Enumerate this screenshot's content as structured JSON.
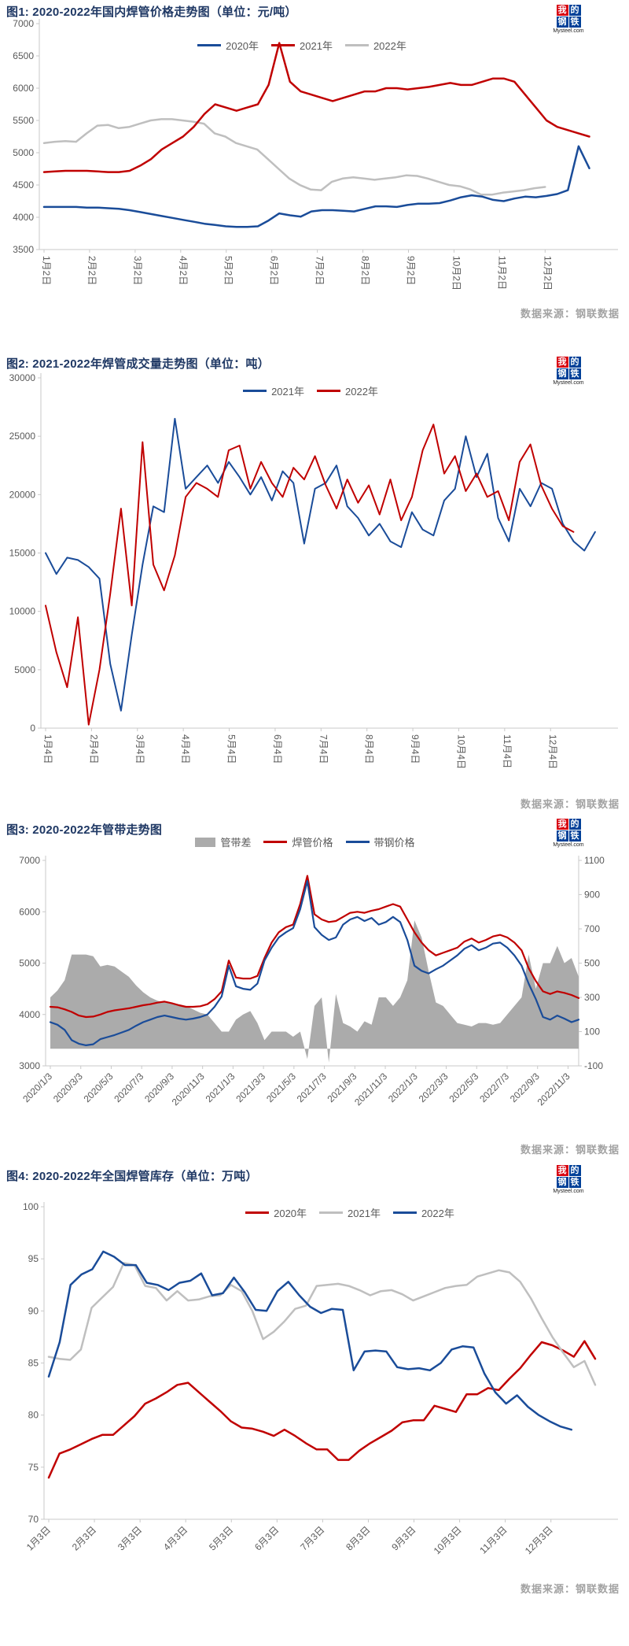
{
  "logo": {
    "chars": [
      "我",
      "的",
      "钢",
      "铁"
    ],
    "domain": "Mysteel.com",
    "red": "#D7000F",
    "blue": "#004098"
  },
  "chart_data": [
    {
      "type": "line",
      "title": "图1: 2020-2022年国内焊管价格走势图（单位：元/吨）",
      "source": "数据来源：钢联数据",
      "y_axis": {
        "min": 3500,
        "max": 7000,
        "step": 500
      },
      "x_tick_labels": [
        "1月2日",
        "2月2日",
        "3月2日",
        "4月2日",
        "5月2日",
        "6月2日",
        "7月2日",
        "8月2日",
        "9月2日",
        "10月2日",
        "11月2日",
        "12月2日"
      ],
      "x_tick_rotation": "vertical",
      "months_total": 11.97,
      "x_span_frac": 0.95,
      "line_width": 2.5,
      "legend_position": "top-center",
      "draw_order": [
        2,
        0,
        1
      ],
      "series": [
        {
          "name": "2020年",
          "kind": "line",
          "axis": "left",
          "color": "#1A4C99",
          "months": 11.97,
          "values": [
            4160,
            4160,
            4160,
            4160,
            4150,
            4150,
            4140,
            4130,
            4110,
            4080,
            4050,
            4020,
            3990,
            3960,
            3930,
            3900,
            3880,
            3860,
            3850,
            3850,
            3860,
            3950,
            4060,
            4030,
            4010,
            4090,
            4110,
            4110,
            4100,
            4090,
            4130,
            4170,
            4170,
            4160,
            4190,
            4210,
            4210,
            4220,
            4260,
            4310,
            4340,
            4320,
            4270,
            4250,
            4290,
            4320,
            4310,
            4330,
            4360,
            4420,
            5100,
            4760
          ]
        },
        {
          "name": "2021年",
          "kind": "line",
          "axis": "left",
          "color": "#C00000",
          "months": 11.97,
          "values": [
            4700,
            4710,
            4720,
            4720,
            4720,
            4710,
            4700,
            4700,
            4720,
            4800,
            4900,
            5050,
            5150,
            5250,
            5400,
            5600,
            5750,
            5700,
            5650,
            5700,
            5750,
            6050,
            6700,
            6100,
            5950,
            5900,
            5850,
            5800,
            5850,
            5900,
            5950,
            5950,
            6000,
            6000,
            5980,
            6000,
            6020,
            6050,
            6080,
            6050,
            6050,
            6100,
            6150,
            6150,
            6100,
            5900,
            5700,
            5500,
            5400,
            5350,
            5300,
            5250
          ]
        },
        {
          "name": "2022年",
          "kind": "line",
          "axis": "left",
          "color": "#BFBFBF",
          "months": 11.0,
          "values": [
            5150,
            5170,
            5180,
            5170,
            5300,
            5420,
            5430,
            5380,
            5400,
            5450,
            5500,
            5520,
            5520,
            5500,
            5480,
            5450,
            5300,
            5250,
            5150,
            5100,
            5050,
            4900,
            4750,
            4600,
            4500,
            4430,
            4420,
            4550,
            4600,
            4620,
            4600,
            4580,
            4600,
            4620,
            4650,
            4640,
            4600,
            4550,
            4500,
            4480,
            4430,
            4350,
            4350,
            4380,
            4400,
            4420,
            4450,
            4470
          ]
        }
      ]
    },
    {
      "type": "line",
      "title": "图2: 2021-2022年焊管成交量走势图（单位：吨）",
      "source": "数据来源：钢联数据",
      "y_axis": {
        "min": 0,
        "max": 30000,
        "step": 5000
      },
      "x_tick_labels": [
        "1月4日",
        "2月4日",
        "3月4日",
        "4月4日",
        "5月4日",
        "6月4日",
        "7月4日",
        "8月4日",
        "9月4日",
        "10月4日",
        "11月4日",
        "12月4日"
      ],
      "x_tick_rotation": "vertical",
      "months_total": 11.97,
      "x_span_frac": 0.96,
      "line_width": 2,
      "legend_position": "top-center",
      "draw_order": [
        0,
        1
      ],
      "series": [
        {
          "name": "2021年",
          "kind": "line",
          "axis": "left",
          "color": "#1A4C99",
          "months": 11.97,
          "values": [
            15000,
            13200,
            14600,
            14400,
            13800,
            12800,
            5500,
            1500,
            8000,
            14000,
            19000,
            18500,
            26500,
            20500,
            21500,
            22500,
            21000,
            22800,
            21500,
            20000,
            21500,
            19500,
            22000,
            21000,
            15800,
            20500,
            21000,
            22500,
            19000,
            18000,
            16500,
            17500,
            16000,
            15500,
            18500,
            17000,
            16500,
            19500,
            20500,
            25000,
            21500,
            23500,
            18000,
            16000,
            20500,
            19000,
            21000,
            20500,
            17500,
            16000,
            15200,
            16800
          ]
        },
        {
          "name": "2022年",
          "kind": "line",
          "axis": "left",
          "color": "#C00000",
          "months": 11.5,
          "values": [
            10500,
            6500,
            3500,
            9500,
            300,
            5000,
            11500,
            18800,
            10500,
            24500,
            14000,
            11800,
            14800,
            19800,
            21000,
            20500,
            19800,
            23800,
            24200,
            20500,
            22800,
            21000,
            19800,
            22300,
            21300,
            23300,
            20800,
            18800,
            21300,
            19300,
            20800,
            18300,
            21300,
            17800,
            19800,
            23800,
            26000,
            21800,
            23300,
            20300,
            21800,
            19800,
            20300,
            17800,
            22800,
            24300,
            20800,
            18800,
            17300,
            16800
          ]
        }
      ]
    },
    {
      "type": "area+line",
      "title": "图3: 2020-2022年管带走势图",
      "source": "数据来源：钢联数据",
      "y_axis": {
        "min": 3000,
        "max": 7000,
        "step": 1000
      },
      "y_axis_right": {
        "min": -100,
        "max": 1100,
        "step": 200
      },
      "x_tick_labels": [
        "2020/1/3",
        "2020/3/3",
        "2020/5/3",
        "2020/7/3",
        "2020/9/3",
        "2020/11/3",
        "2021/1/3",
        "2021/3/3",
        "2021/5/3",
        "2021/7/3",
        "2021/9/3",
        "2021/11/3",
        "2022/1/3",
        "2022/3/3",
        "2022/5/3",
        "2022/7/3",
        "2022/9/3",
        "2022/11/3"
      ],
      "x_tick_rotation": "diagonal",
      "x_tick_month_step": 2,
      "months_total": 34.7,
      "x_span_frac": 1.0,
      "line_width": 2.2,
      "legend_position": "top-center",
      "draw_order": [
        0,
        1,
        2
      ],
      "series": [
        {
          "name": "管带差",
          "kind": "area",
          "axis": "right",
          "color": "#ABABAB",
          "months": 34.7,
          "values": [
            300,
            340,
            400,
            550,
            550,
            550,
            540,
            480,
            490,
            480,
            450,
            420,
            370,
            330,
            300,
            280,
            270,
            270,
            260,
            250,
            230,
            210,
            200,
            150,
            100,
            100,
            170,
            200,
            220,
            150,
            50,
            100,
            100,
            100,
            70,
            100,
            -60,
            250,
            300,
            -80,
            320,
            150,
            130,
            100,
            160,
            140,
            300,
            300,
            250,
            300,
            400,
            750,
            650,
            450,
            270,
            250,
            200,
            150,
            140,
            130,
            150,
            150,
            140,
            150,
            200,
            250,
            300,
            550,
            350,
            500,
            500,
            600,
            500,
            530,
            420
          ]
        },
        {
          "name": "焊管价格",
          "kind": "line",
          "axis": "left",
          "color": "#C00000",
          "months": 34.7,
          "values": [
            4150,
            4140,
            4100,
            4050,
            3980,
            3950,
            3960,
            4000,
            4050,
            4080,
            4100,
            4120,
            4150,
            4180,
            4200,
            4230,
            4250,
            4220,
            4180,
            4150,
            4150,
            4160,
            4200,
            4300,
            4450,
            5050,
            4720,
            4700,
            4700,
            4750,
            5100,
            5400,
            5600,
            5700,
            5750,
            6150,
            6700,
            5950,
            5850,
            5800,
            5820,
            5900,
            5980,
            6000,
            5980,
            6020,
            6050,
            6100,
            6150,
            6100,
            5850,
            5600,
            5400,
            5250,
            5150,
            5200,
            5250,
            5300,
            5420,
            5480,
            5400,
            5450,
            5520,
            5550,
            5500,
            5400,
            5250,
            4900,
            4650,
            4450,
            4400,
            4450,
            4420,
            4380,
            4320
          ]
        },
        {
          "name": "带钢价格",
          "kind": "line",
          "axis": "left",
          "color": "#1A4C99",
          "months": 34.7,
          "values": [
            3850,
            3800,
            3700,
            3500,
            3430,
            3400,
            3420,
            3520,
            3560,
            3600,
            3650,
            3700,
            3780,
            3850,
            3900,
            3950,
            3980,
            3950,
            3920,
            3900,
            3920,
            3950,
            4000,
            4150,
            4350,
            4950,
            4550,
            4500,
            4480,
            4600,
            5050,
            5300,
            5500,
            5600,
            5680,
            6050,
            6600,
            5700,
            5550,
            5450,
            5500,
            5750,
            5850,
            5900,
            5820,
            5880,
            5750,
            5800,
            5900,
            5800,
            5450,
            4950,
            4850,
            4800,
            4880,
            4950,
            5050,
            5150,
            5280,
            5350,
            5250,
            5300,
            5380,
            5400,
            5300,
            5150,
            4950,
            4600,
            4300,
            3950,
            3900,
            3980,
            3920,
            3850,
            3900
          ]
        }
      ]
    },
    {
      "type": "line",
      "title": "图4: 2020-2022年全国焊管库存（单位：万吨）",
      "source": "数据来源：钢联数据",
      "y_axis": {
        "min": 70,
        "max": 100,
        "step": 5
      },
      "x_tick_labels": [
        "1月3日",
        "2月3日",
        "3月3日",
        "4月3日",
        "5月3日",
        "6月3日",
        "7月3日",
        "8月3日",
        "9月3日",
        "10月3日",
        "11月3日",
        "12月3日"
      ],
      "x_tick_rotation": "diagonal",
      "months_total": 11.97,
      "x_span_frac": 0.96,
      "line_width": 2.5,
      "legend_position": "top-center",
      "draw_order": [
        0,
        1,
        2
      ],
      "series": [
        {
          "name": "2020年",
          "kind": "line",
          "axis": "left",
          "color": "#C00000",
          "months": 11.97,
          "values": [
            74.0,
            76.3,
            76.7,
            77.2,
            77.7,
            78.1,
            78.1,
            79.0,
            79.9,
            81.1,
            81.6,
            82.2,
            82.9,
            83.1,
            82.2,
            81.3,
            80.4,
            79.4,
            78.8,
            78.7,
            78.4,
            78.0,
            78.6,
            78.0,
            77.3,
            76.7,
            76.7,
            75.7,
            75.7,
            76.6,
            77.3,
            77.9,
            78.5,
            79.3,
            79.5,
            79.5,
            80.9,
            80.6,
            80.3,
            82.0,
            82.0,
            82.6,
            82.4,
            83.5,
            84.5,
            85.8,
            87.0,
            86.7,
            86.2,
            85.6,
            87.1,
            85.4
          ]
        },
        {
          "name": "2021年",
          "kind": "line",
          "axis": "left",
          "color": "#BFBFBF",
          "months": 11.97,
          "values": [
            85.6,
            85.4,
            85.3,
            86.3,
            90.3,
            91.3,
            92.3,
            94.6,
            94.4,
            92.4,
            92.2,
            91.0,
            91.9,
            91.0,
            91.1,
            91.4,
            91.5,
            92.5,
            91.9,
            90.0,
            87.3,
            88.0,
            89.0,
            90.2,
            90.5,
            92.4,
            92.5,
            92.6,
            92.4,
            92.0,
            91.5,
            91.9,
            92.0,
            91.6,
            91.0,
            91.4,
            91.8,
            92.2,
            92.4,
            92.5,
            93.3,
            93.6,
            93.9,
            93.7,
            92.8,
            91.2,
            89.3,
            87.5,
            86.0,
            84.6,
            85.2,
            82.9
          ]
        },
        {
          "name": "2022年",
          "kind": "line",
          "axis": "left",
          "color": "#1A4C99",
          "months": 11.45,
          "values": [
            83.7,
            87.0,
            92.5,
            93.5,
            94.0,
            95.7,
            95.2,
            94.4,
            94.4,
            92.7,
            92.5,
            92.0,
            92.7,
            92.9,
            93.6,
            91.5,
            91.7,
            93.2,
            91.8,
            90.1,
            90.0,
            91.9,
            92.8,
            91.5,
            90.4,
            89.8,
            90.2,
            90.1,
            84.3,
            86.1,
            86.2,
            86.1,
            84.6,
            84.4,
            84.5,
            84.3,
            85.0,
            86.3,
            86.6,
            86.5,
            84.0,
            82.2,
            81.1,
            81.9,
            80.8,
            80.0,
            79.4,
            78.9,
            78.6
          ]
        }
      ]
    }
  ]
}
